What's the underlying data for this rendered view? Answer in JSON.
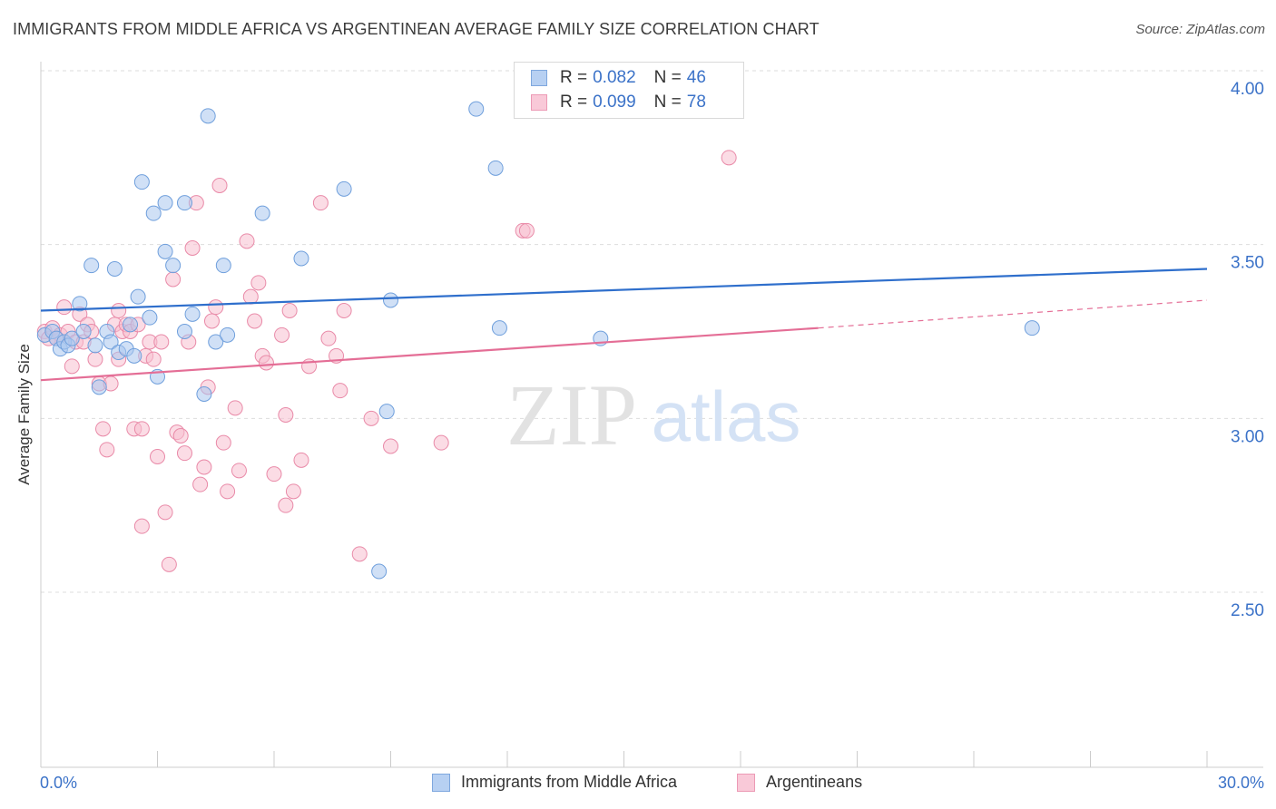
{
  "title": "IMMIGRANTS FROM MIDDLE AFRICA VS ARGENTINEAN AVERAGE FAMILY SIZE CORRELATION CHART",
  "source": "Source: ZipAtlas.com",
  "watermark": {
    "zip": "ZIP",
    "atlas": "atlas"
  },
  "legend": {
    "series1": {
      "r_label": "R =",
      "r_value": "0.082",
      "n_label": "N =",
      "n_value": "46"
    },
    "series2": {
      "r_label": "R =",
      "r_value": "0.099",
      "n_label": "N =",
      "n_value": "78"
    }
  },
  "bottom_legend": {
    "series1": "Immigrants from Middle Africa",
    "series2": "Argentineans"
  },
  "colors": {
    "blue_fill": "#a9c7ef",
    "blue_stroke": "#6f9fdc",
    "blue_line": "#2f6fcc",
    "pink_fill": "#f7bfd0",
    "pink_stroke": "#e98aa8",
    "pink_line": "#e46e96",
    "axis_text": "#3b72c8",
    "grid": "#dddddd"
  },
  "chart_data": {
    "type": "scatter",
    "title": "IMMIGRANTS FROM MIDDLE AFRICA VS ARGENTINEAN AVERAGE FAMILY SIZE CORRELATION CHART",
    "xlabel": "",
    "ylabel": "Average Family Size",
    "xlim": [
      0,
      30
    ],
    "ylim": [
      2.0,
      4.1
    ],
    "x_tick_labels": [
      "0.0%",
      "30.0%"
    ],
    "y_ticks": [
      2.5,
      3.0,
      3.5,
      4.0
    ],
    "y_tick_labels": [
      "2.50",
      "3.00",
      "3.50",
      "4.00"
    ],
    "grid": true,
    "legend_position": "top-center",
    "series": [
      {
        "name": "Immigrants from Middle Africa",
        "r": 0.082,
        "n": 46,
        "trend": {
          "x": [
            0,
            30
          ],
          "y": [
            3.31,
            3.43
          ]
        },
        "points": [
          [
            0.1,
            3.24
          ],
          [
            0.3,
            3.25
          ],
          [
            0.4,
            3.23
          ],
          [
            0.5,
            3.2
          ],
          [
            0.6,
            3.22
          ],
          [
            0.7,
            3.21
          ],
          [
            0.8,
            3.23
          ],
          [
            1.0,
            3.33
          ],
          [
            1.1,
            3.25
          ],
          [
            1.3,
            3.44
          ],
          [
            1.4,
            3.21
          ],
          [
            1.5,
            3.09
          ],
          [
            1.7,
            3.25
          ],
          [
            1.8,
            3.22
          ],
          [
            1.9,
            3.43
          ],
          [
            2.0,
            3.19
          ],
          [
            2.2,
            3.2
          ],
          [
            2.3,
            3.27
          ],
          [
            2.4,
            3.18
          ],
          [
            2.5,
            3.35
          ],
          [
            2.6,
            3.68
          ],
          [
            2.8,
            3.29
          ],
          [
            2.9,
            3.59
          ],
          [
            3.0,
            3.12
          ],
          [
            3.2,
            3.62
          ],
          [
            3.2,
            3.48
          ],
          [
            3.4,
            3.44
          ],
          [
            3.7,
            3.62
          ],
          [
            3.7,
            3.25
          ],
          [
            3.9,
            3.3
          ],
          [
            4.2,
            3.07
          ],
          [
            4.3,
            3.87
          ],
          [
            4.5,
            3.22
          ],
          [
            4.7,
            3.44
          ],
          [
            4.8,
            3.24
          ],
          [
            5.7,
            3.59
          ],
          [
            6.7,
            3.46
          ],
          [
            7.8,
            3.66
          ],
          [
            8.9,
            3.02
          ],
          [
            9.0,
            3.34
          ],
          [
            8.7,
            2.56
          ],
          [
            11.2,
            3.89
          ],
          [
            11.7,
            3.72
          ],
          [
            11.8,
            3.26
          ],
          [
            14.4,
            3.23
          ],
          [
            25.5,
            3.26
          ]
        ]
      },
      {
        "name": "Argentineans",
        "r": 0.099,
        "n": 78,
        "trend": {
          "x": [
            0,
            20
          ],
          "y": [
            3.11,
            3.26
          ]
        },
        "trend_dashed": {
          "x": [
            20,
            30
          ],
          "y": [
            3.26,
            3.34
          ]
        },
        "points": [
          [
            0.1,
            3.25
          ],
          [
            0.2,
            3.23
          ],
          [
            0.3,
            3.26
          ],
          [
            0.5,
            3.24
          ],
          [
            0.6,
            3.32
          ],
          [
            0.7,
            3.25
          ],
          [
            0.8,
            3.15
          ],
          [
            0.9,
            3.22
          ],
          [
            1.0,
            3.3
          ],
          [
            1.1,
            3.22
          ],
          [
            1.2,
            3.27
          ],
          [
            1.3,
            3.25
          ],
          [
            1.4,
            3.17
          ],
          [
            1.5,
            3.1
          ],
          [
            1.6,
            2.97
          ],
          [
            1.7,
            2.91
          ],
          [
            1.8,
            3.1
          ],
          [
            1.9,
            3.27
          ],
          [
            2.0,
            3.17
          ],
          [
            2.0,
            3.31
          ],
          [
            2.1,
            3.25
          ],
          [
            2.2,
            3.27
          ],
          [
            2.3,
            3.25
          ],
          [
            2.4,
            2.97
          ],
          [
            2.5,
            3.27
          ],
          [
            2.6,
            2.97
          ],
          [
            2.6,
            2.69
          ],
          [
            2.7,
            3.18
          ],
          [
            2.8,
            3.22
          ],
          [
            2.9,
            3.17
          ],
          [
            3.0,
            2.89
          ],
          [
            3.1,
            3.22
          ],
          [
            3.2,
            2.73
          ],
          [
            3.3,
            2.58
          ],
          [
            3.4,
            3.4
          ],
          [
            3.5,
            2.96
          ],
          [
            3.6,
            2.95
          ],
          [
            3.7,
            2.9
          ],
          [
            3.8,
            3.22
          ],
          [
            3.9,
            3.49
          ],
          [
            4.0,
            3.62
          ],
          [
            4.1,
            2.81
          ],
          [
            4.2,
            2.86
          ],
          [
            4.3,
            3.09
          ],
          [
            4.4,
            3.28
          ],
          [
            4.5,
            3.32
          ],
          [
            4.6,
            3.67
          ],
          [
            4.7,
            2.93
          ],
          [
            4.8,
            2.79
          ],
          [
            5.0,
            3.03
          ],
          [
            5.1,
            2.85
          ],
          [
            5.3,
            3.51
          ],
          [
            5.4,
            3.35
          ],
          [
            5.5,
            3.28
          ],
          [
            5.6,
            3.39
          ],
          [
            5.7,
            3.18
          ],
          [
            5.8,
            3.16
          ],
          [
            6.0,
            2.84
          ],
          [
            6.2,
            3.24
          ],
          [
            6.3,
            2.75
          ],
          [
            6.3,
            3.01
          ],
          [
            6.4,
            3.31
          ],
          [
            6.5,
            2.79
          ],
          [
            6.7,
            2.88
          ],
          [
            6.9,
            3.15
          ],
          [
            7.2,
            3.62
          ],
          [
            7.4,
            3.23
          ],
          [
            7.6,
            3.18
          ],
          [
            7.7,
            3.08
          ],
          [
            7.8,
            3.31
          ],
          [
            8.2,
            2.61
          ],
          [
            8.5,
            3.0
          ],
          [
            9.0,
            2.92
          ],
          [
            10.3,
            2.93
          ],
          [
            12.4,
            3.54
          ],
          [
            12.5,
            3.54
          ],
          [
            17.7,
            3.75
          ],
          [
            0.4,
            3.23
          ]
        ]
      }
    ]
  }
}
